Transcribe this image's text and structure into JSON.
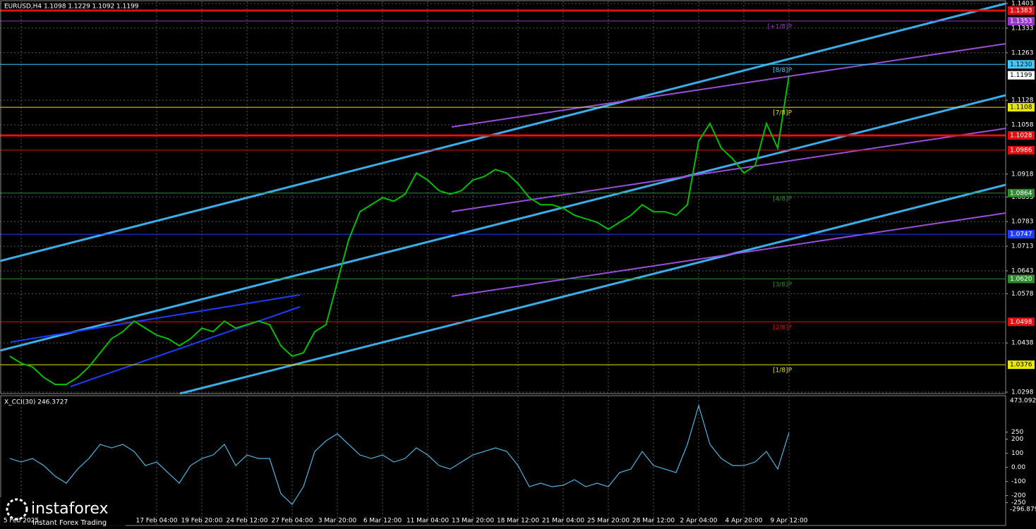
{
  "chart_data": [
    {
      "type": "line",
      "title": "EURUSD,H4  1.1098 1.1229 1.1092 1.1199",
      "color": "#00c000",
      "categories": [
        null,
        "5 Feb 2025",
        null,
        null,
        null,
        null,
        null,
        null,
        null,
        null,
        null,
        null,
        null,
        "17 Feb 04:00",
        null,
        null,
        null,
        "19 Feb 20:00",
        null,
        null,
        null,
        "24 Feb 12:00",
        null,
        null,
        null,
        "27 Feb 04:00",
        null,
        null,
        null,
        "3 Mar 20:00",
        null,
        null,
        null,
        "6 Mar 12:00",
        null,
        null,
        null,
        "11 Mar 04:00",
        null,
        null,
        null,
        "13 Mar 20:00",
        null,
        null,
        null,
        "18 Mar 12:00",
        null,
        null,
        null,
        "21 Mar 04:00",
        null,
        null,
        null,
        "25 Mar 20:00",
        null,
        null,
        null,
        "28 Mar 12:00",
        null,
        null,
        null,
        "2 Apr 04:00",
        null,
        null,
        null,
        "4 Apr 20:00",
        null,
        null,
        null,
        "9 Apr 12:00"
      ],
      "values": [
        1.04,
        1.038,
        1.037,
        1.034,
        1.032,
        1.032,
        1.034,
        1.037,
        1.041,
        1.045,
        1.047,
        1.05,
        1.048,
        1.046,
        1.045,
        1.043,
        1.045,
        1.048,
        1.047,
        1.05,
        1.048,
        1.049,
        1.05,
        1.049,
        1.043,
        1.04,
        1.041,
        1.047,
        1.049,
        1.0611,
        1.0731,
        1.0811,
        1.0831,
        1.0851,
        1.0841,
        1.0861,
        1.0921,
        1.0901,
        1.0871,
        1.0861,
        1.0871,
        1.0901,
        1.0911,
        1.0931,
        1.0921,
        1.0891,
        1.0851,
        1.0831,
        1.0831,
        1.0821,
        1.0801,
        1.0791,
        1.0781,
        1.0761,
        1.0781,
        1.0801,
        1.0831,
        1.0811,
        1.0811,
        1.0801,
        1.0831,
        1.1012,
        1.1062,
        1.0992,
        1.0962,
        1.0921,
        1.0942,
        1.1062,
        1.0992,
        1.1199
      ],
      "ylim": [
        1.0298,
        1.1403
      ],
      "yticks": [
        1.1403,
        1.1333,
        1.1263,
        1.1128,
        1.1058,
        1.0918,
        1.0853,
        1.0783,
        1.0713,
        1.0643,
        1.0578,
        1.0438,
        1.0298
      ],
      "grid": true,
      "levels": [
        {
          "value": 1.1383,
          "color": "#e01010"
        },
        {
          "value": 1.1353,
          "color": "#9933cc",
          "name": "[+1/8]P"
        },
        {
          "value": 1.123,
          "label": "1.1230",
          "color": "#40c8ff",
          "name": "[8/8]P"
        },
        {
          "value": 1.1108,
          "color": "#e8e800",
          "name": "[7/8]P"
        },
        {
          "value": 1.1028,
          "color": "#e01010"
        },
        {
          "value": 1.0986,
          "color": "#e01010"
        },
        {
          "value": 1.0864,
          "color": "#2e8b2e",
          "name": "[4/8]P"
        },
        {
          "value": 1.0747,
          "color": "#1e3cff"
        },
        {
          "value": 1.062,
          "label": "1.0620",
          "color": "#2e8b2e",
          "name": "[3/8]P"
        },
        {
          "value": 1.0498,
          "color": "#e01010",
          "name": "[2/8]P"
        },
        {
          "value": 1.0376,
          "color": "#e8e800",
          "name": "[1/8]P"
        }
      ]
    },
    {
      "type": "line",
      "title": "X_CCI(30) 246.3727",
      "color": "#4fb4e0",
      "values": [
        63,
        38,
        63,
        13,
        -62,
        -112,
        -12,
        63,
        163,
        138,
        163,
        113,
        13,
        38,
        -37,
        -112,
        13,
        63,
        88,
        163,
        13,
        88,
        63,
        63,
        -187,
        -262,
        -137,
        113,
        188,
        238,
        163,
        88,
        63,
        88,
        38,
        63,
        138,
        88,
        13,
        -12,
        38,
        88,
        113,
        138,
        113,
        13,
        -137,
        -112,
        -137,
        -127,
        -87,
        -137,
        -112,
        -137,
        -37,
        -12,
        113,
        13,
        -12,
        -37,
        163,
        438,
        163,
        63,
        13,
        13,
        38,
        113,
        -12,
        246.3727
      ],
      "ylim": [
        -296.8792,
        473.0924
      ],
      "yticks": [
        250,
        200,
        100,
        {
          "value": 0,
          "label": "0.00"
        },
        -100,
        -200,
        -250
      ]
    }
  ],
  "logo": {
    "name": "instaforex",
    "tagline": "Instant Forex Trading"
  }
}
